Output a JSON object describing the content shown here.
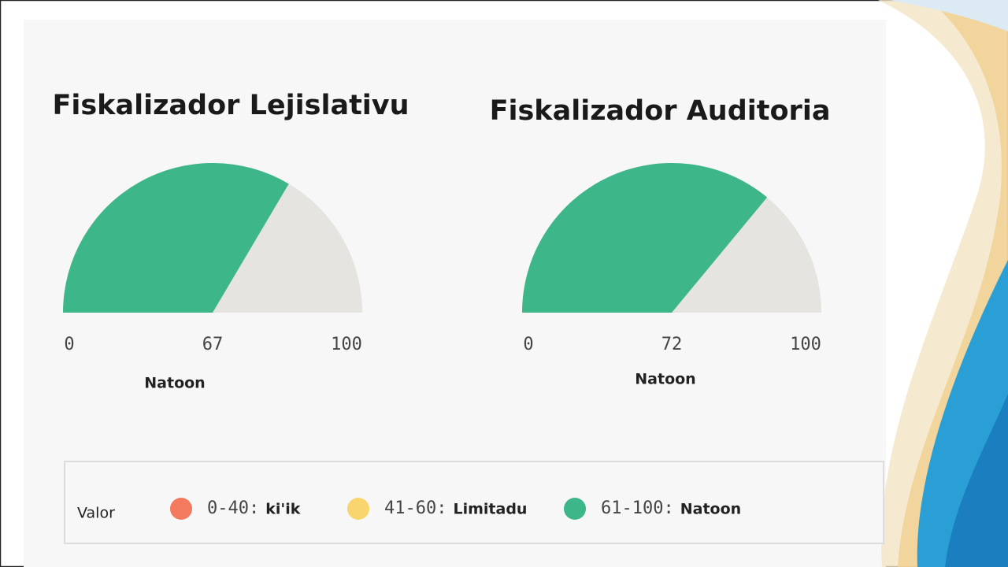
{
  "chart_data": [
    {
      "type": "gauge",
      "title": "Fiskalizador Lejislativu",
      "value": 67,
      "ylim": [
        0,
        100
      ],
      "unit_label": "Natoon",
      "color": "#3db689",
      "track_color": "#e6e4e0"
    },
    {
      "type": "gauge",
      "title": "Fiskalizador Auditoria",
      "value": 72,
      "ylim": [
        0,
        100
      ],
      "unit_label": "Natoon",
      "color": "#3db689",
      "track_color": "#e6e4e0"
    }
  ],
  "legend": {
    "title": "Valor",
    "items": [
      {
        "range": "0-40:",
        "label": "ki'ik",
        "color": "#f47a5f"
      },
      {
        "range": "41-60:",
        "label": "Limitadu",
        "color": "#f9d56e"
      },
      {
        "range": "61-100:",
        "label": "Natoon",
        "color": "#3db689"
      }
    ]
  }
}
